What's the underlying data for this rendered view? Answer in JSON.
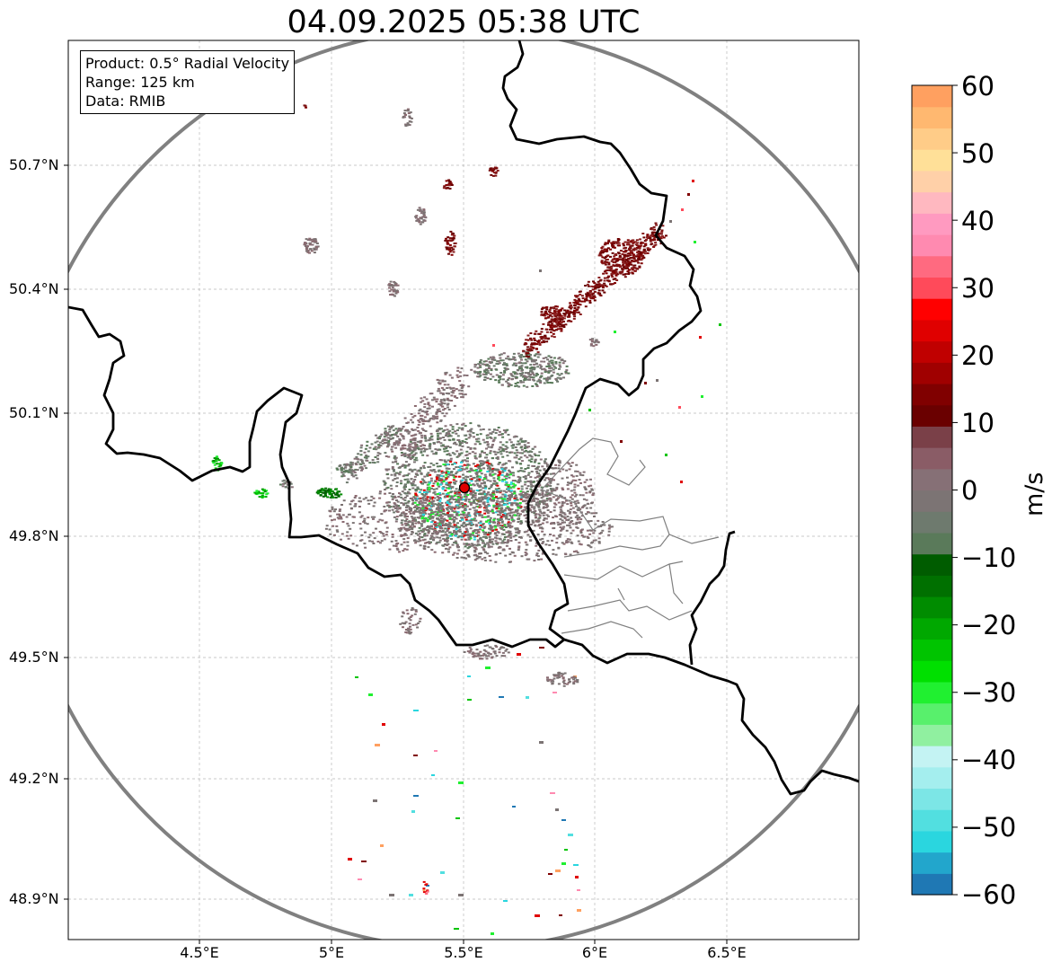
{
  "title": "04.09.2025 05:38 UTC",
  "info": {
    "product": "Product: 0.5° Radial Velocity",
    "range": "Range: 125 km",
    "source": "Data: RMIB"
  },
  "axes": {
    "lat_labels": [
      "50.7°N",
      "50.4°N",
      "50.1°N",
      "49.8°N",
      "49.5°N",
      "49.2°N",
      "48.9°N"
    ],
    "lon_labels": [
      "4.5°E",
      "5°E",
      "5.5°E",
      "6°E",
      "6.5°E"
    ]
  },
  "colorbar": {
    "unit": "m/s",
    "ticks": [
      "60",
      "50",
      "40",
      "30",
      "20",
      "10",
      "0",
      "−10",
      "−20",
      "−30",
      "−40",
      "−50",
      "−60"
    ],
    "min": -60,
    "max": 60,
    "colors": [
      "#1f78b4",
      "#22a6cc",
      "#2ad6df",
      "#52dfe0",
      "#7ce6e6",
      "#a4eeee",
      "#c4f3f3",
      "#90f0a0",
      "#58f06c",
      "#20f030",
      "#00e000",
      "#00c400",
      "#00a800",
      "#008c00",
      "#007000",
      "#005c00",
      "#5a7a5a",
      "#6e7a6e",
      "#7c7474",
      "#867076",
      "#8a5c66",
      "#7a4048",
      "#6a0000",
      "#800000",
      "#a00000",
      "#c00000",
      "#e00000",
      "#ff0000",
      "#ff4a5a",
      "#ff6a80",
      "#ff8ab0",
      "#ff9ac0",
      "#ffb8c0",
      "#ffd0a8",
      "#ffe098",
      "#ffcc88",
      "#ffb870",
      "#ffa060"
    ]
  },
  "palette": {
    "border": "#000000",
    "region": "#808080",
    "grid": "#b0b0b0",
    "range_ring": "#808080",
    "radar_site": "#e00000"
  },
  "radar_site": {
    "lon": 5.505,
    "lat": 49.914
  }
}
